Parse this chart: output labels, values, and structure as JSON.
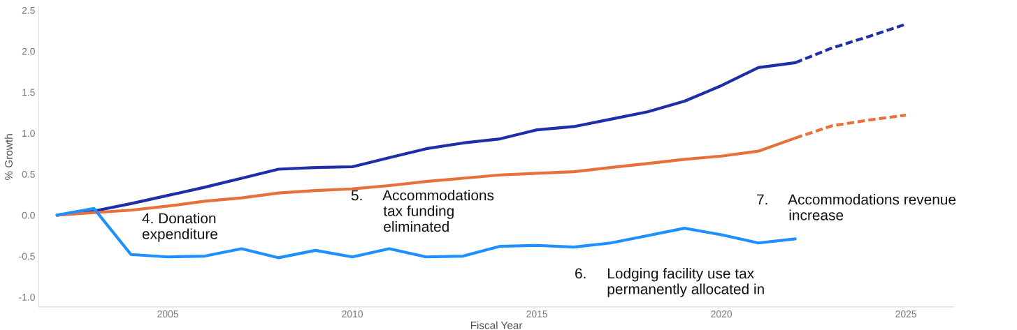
{
  "chart_data": {
    "type": "line",
    "xlabel": "Fiscal Year",
    "ylabel": "% Growth",
    "xlim": [
      2001.5,
      2026.3
    ],
    "xticks": [
      2005,
      2010,
      2015,
      2020,
      2025
    ],
    "ylim": [
      -1.12,
      2.54
    ],
    "yticks": [
      {
        "value": -1,
        "label": "-1.0"
      },
      {
        "value": -0.5,
        "label": "-0.5"
      },
      {
        "value": 0,
        "label": "0.0"
      },
      {
        "value": 0.5,
        "label": "0.5"
      },
      {
        "value": 1,
        "label": "1.0"
      },
      {
        "value": 1.5,
        "label": "1.5"
      },
      {
        "value": 2,
        "label": "2.0"
      },
      {
        "value": 2.5,
        "label": "2.5"
      }
    ],
    "grid": false,
    "legend": false,
    "line_style": "solid",
    "series": [
      {
        "color": "#1f2fa8",
        "x": [
          2002,
          2003,
          2004,
          2005,
          2006,
          2007,
          2008,
          2009,
          2010,
          2011,
          2012,
          2013,
          2014,
          2015,
          2016,
          2017,
          2018,
          2019,
          2020,
          2021,
          2022
        ],
        "values": [
          0,
          0.05,
          0.14,
          0.24,
          0.34,
          0.45,
          0.56,
          0.58,
          0.59,
          0.7,
          0.81,
          0.88,
          0.93,
          1.04,
          1.08,
          1.17,
          1.26,
          1.39,
          1.58,
          1.8,
          1.86
        ]
      },
      {
        "color": "#1f2fa8",
        "line_style": "dashed",
        "x": [
          2022,
          2023,
          2024,
          2025
        ],
        "values": [
          1.86,
          2.04,
          2.18,
          2.33
        ]
      },
      {
        "color": "#e8703a",
        "x": [
          2002,
          2003,
          2004,
          2005,
          2006,
          2007,
          2008,
          2009,
          2010,
          2011,
          2012,
          2013,
          2014,
          2015,
          2016,
          2017,
          2018,
          2019,
          2020,
          2021,
          2022
        ],
        "values": [
          0,
          0.03,
          0.06,
          0.11,
          0.17,
          0.21,
          0.27,
          0.3,
          0.32,
          0.36,
          0.41,
          0.45,
          0.49,
          0.51,
          0.53,
          0.58,
          0.63,
          0.68,
          0.72,
          0.78,
          0.94
        ]
      },
      {
        "color": "#e8703a",
        "line_style": "dashed",
        "x": [
          2022,
          2023,
          2024,
          2025
        ],
        "values": [
          0.94,
          1.09,
          1.16,
          1.22
        ]
      },
      {
        "color": "#1e90ff",
        "x": [
          2002,
          2003,
          2004,
          2005,
          2006,
          2007,
          2008,
          2009,
          2010,
          2011,
          2012,
          2013,
          2014,
          2015,
          2016,
          2017,
          2018,
          2019,
          2020,
          2021,
          2022
        ],
        "values": [
          0,
          0.08,
          -0.48,
          -0.51,
          -0.5,
          -0.41,
          -0.52,
          -0.43,
          -0.51,
          -0.41,
          -0.51,
          -0.5,
          -0.38,
          -0.37,
          -0.39,
          -0.34,
          -0.25,
          -0.16,
          -0.24,
          -0.34,
          -0.29
        ]
      }
    ],
    "annotations": [
      "4. Donation\nexpenditure",
      "5.     Accommodations\n        tax funding\n        eliminated",
      "6.     Lodging facility use tax\n        permanently allocated in",
      "7.     Accommodations revenue\n        increase"
    ]
  }
}
